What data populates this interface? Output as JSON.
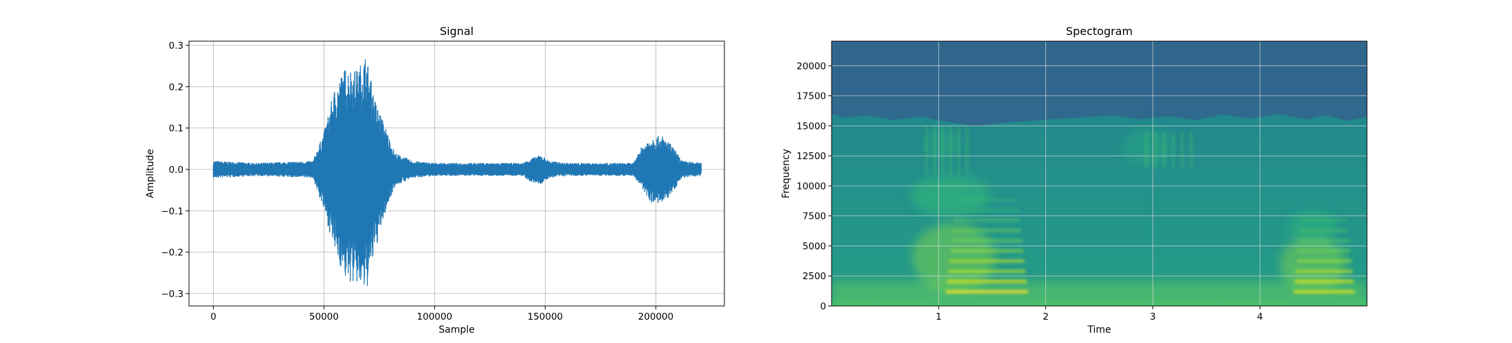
{
  "chart_data": [
    {
      "type": "line",
      "title": "Signal",
      "xlabel": "Sample",
      "ylabel": "Amplitude",
      "xlim": [
        -11000,
        231000
      ],
      "ylim": [
        -0.33,
        0.31
      ],
      "xticks": [
        0,
        50000,
        100000,
        150000,
        200000
      ],
      "xtick_labels": [
        "0",
        "50000",
        "100000",
        "150000",
        "200000"
      ],
      "yticks": [
        -0.3,
        -0.2,
        -0.1,
        0.0,
        0.1,
        0.2,
        0.3
      ],
      "ytick_labels": [
        "−0.3",
        "−0.2",
        "−0.1",
        "0.0",
        "0.1",
        "0.2",
        "0.3"
      ],
      "grid": true,
      "color": "#1f77b4",
      "n_samples": 220500,
      "envelope": {
        "x": [
          0,
          20000,
          45000,
          50000,
          55000,
          60000,
          65000,
          69000,
          73000,
          78000,
          82000,
          90000,
          100000,
          140000,
          143000,
          148000,
          152000,
          160000,
          190000,
          193000,
          198000,
          203000,
          207000,
          212000,
          220500
        ],
        "upper": [
          0.02,
          0.015,
          0.02,
          0.09,
          0.2,
          0.25,
          0.24,
          0.28,
          0.17,
          0.1,
          0.04,
          0.02,
          0.015,
          0.015,
          0.025,
          0.035,
          0.02,
          0.015,
          0.015,
          0.05,
          0.08,
          0.08,
          0.06,
          0.02,
          0.015
        ],
        "lower": [
          -0.02,
          -0.015,
          -0.02,
          -0.1,
          -0.2,
          -0.27,
          -0.28,
          -0.3,
          -0.2,
          -0.1,
          -0.04,
          -0.02,
          -0.015,
          -0.015,
          -0.03,
          -0.035,
          -0.02,
          -0.015,
          -0.015,
          -0.04,
          -0.08,
          -0.085,
          -0.06,
          -0.02,
          -0.015
        ]
      }
    },
    {
      "type": "heatmap",
      "title": "Spectogram",
      "xlabel": "Time",
      "ylabel": "Frequency",
      "xlim": [
        0,
        5.0
      ],
      "ylim": [
        0,
        22050
      ],
      "xticks": [
        1,
        2,
        3,
        4
      ],
      "xtick_labels": [
        "1",
        "2",
        "3",
        "4"
      ],
      "yticks": [
        0,
        2500,
        5000,
        7500,
        10000,
        12500,
        15000,
        17500,
        20000
      ],
      "ytick_labels": [
        "0",
        "2500",
        "5000",
        "7500",
        "10000",
        "12500",
        "15000",
        "17500",
        "20000"
      ],
      "grid": true,
      "colormap": "viridis",
      "energy_regions": [
        {
          "t": [
            1.05,
            1.85
          ],
          "f": [
            0,
            9000
          ],
          "level": "high"
        },
        {
          "t": [
            4.3,
            4.9
          ],
          "f": [
            0,
            7500
          ],
          "level": "high"
        },
        {
          "t": [
            0.85,
            1.3
          ],
          "f": [
            11000,
            15000
          ],
          "level": "medium"
        },
        {
          "t": [
            2.9,
            3.4
          ],
          "f": [
            11500,
            14500
          ],
          "level": "medium"
        },
        {
          "t": [
            0,
            5.0
          ],
          "f": [
            0,
            2500
          ],
          "level": "medium"
        },
        {
          "t": [
            0,
            5.0
          ],
          "f": [
            17500,
            22050
          ],
          "level": "low"
        }
      ]
    }
  ]
}
